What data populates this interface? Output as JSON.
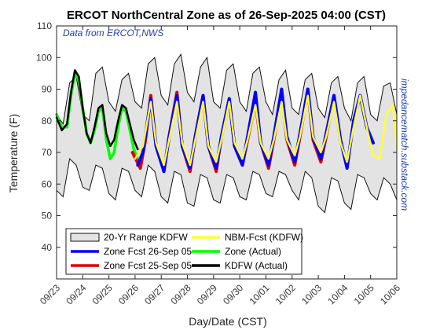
{
  "chart_data": {
    "type": "line",
    "title": "ERCOT NorthCentral Zone as of 26-Sep-2025 04:00 (CST)",
    "subtitle": "Data from ERCOT,NWS",
    "watermark": "impedancematch.substack.com",
    "xlabel": "Day/Date (CST)",
    "ylabel": "Temperature (F)",
    "ylim": [
      30,
      110
    ],
    "yticks": [
      40,
      50,
      60,
      70,
      80,
      90,
      100,
      110
    ],
    "xlim_days": [
      0,
      13
    ],
    "xtick_labels": [
      "09/23",
      "09/24",
      "09/25",
      "09/26",
      "09/27",
      "09/28",
      "09/29",
      "09/30",
      "10/01",
      "10/02",
      "10/03",
      "10/04",
      "10/05",
      "10/06"
    ],
    "grid": false,
    "legend_position": "lower-left",
    "legend": [
      {
        "label": "20-Yr Range KDFW",
        "color": "#d9d9d9",
        "kind": "patch"
      },
      {
        "label": "NBM-Fcst (KDFW)",
        "color": "#ffff33",
        "kind": "line"
      },
      {
        "label": "Zone Fcst 26-Sep 05",
        "color": "#0000ff",
        "kind": "line"
      },
      {
        "label": "Zone (Actual)",
        "color": "#00ff00",
        "kind": "line"
      },
      {
        "label": "Zone Fcst 25-Sep 05",
        "color": "#dd0000",
        "kind": "line"
      },
      {
        "label": "KDFW (Actual)",
        "color": "#000000",
        "kind": "line"
      }
    ],
    "range_band": {
      "name": "20-Yr Range KDFW",
      "days": [
        0,
        0.25,
        0.5,
        0.75,
        1,
        1.25,
        1.5,
        1.75,
        2,
        2.25,
        2.5,
        2.75,
        3,
        3.25,
        3.5,
        3.75,
        4,
        4.25,
        4.5,
        4.75,
        5,
        5.25,
        5.5,
        5.75,
        6,
        6.25,
        6.5,
        6.75,
        7,
        7.25,
        7.5,
        7.75,
        8,
        8.25,
        8.5,
        8.75,
        9,
        9.25,
        9.5,
        9.75,
        10,
        10.25,
        10.5,
        10.75,
        11,
        11.25,
        11.5,
        11.75,
        12,
        12.25,
        12.5,
        12.75,
        13
      ],
      "low": [
        58,
        56,
        68,
        66,
        59,
        58,
        66,
        65,
        57,
        55,
        65,
        64,
        58,
        56,
        66,
        64,
        56,
        54,
        64,
        63,
        54,
        53,
        63,
        62,
        55,
        54,
        63,
        62,
        56,
        55,
        64,
        63,
        57,
        56,
        64,
        63,
        58,
        55,
        64,
        62,
        53,
        51,
        62,
        61,
        54,
        52,
        63,
        62,
        57,
        55,
        62,
        60,
        55
      ],
      "high": [
        82,
        79,
        92,
        94,
        82,
        80,
        95,
        97,
        86,
        83,
        93,
        95,
        86,
        84,
        98,
        100,
        88,
        85,
        98,
        101,
        89,
        86,
        97,
        100,
        86,
        84,
        96,
        98,
        86,
        83,
        95,
        97,
        86,
        82,
        93,
        96,
        84,
        82,
        93,
        95,
        84,
        81,
        92,
        94,
        84,
        80,
        92,
        94,
        82,
        80,
        91,
        92,
        82
      ]
    },
    "series": [
      {
        "name": "KDFW (Actual)",
        "color": "#000000",
        "x": [
          0,
          0.2,
          0.4,
          0.55,
          0.7,
          0.85,
          1,
          1.15,
          1.3,
          1.45,
          1.6,
          1.75,
          1.9,
          2.05,
          2.2,
          2.35,
          2.5,
          2.65,
          2.8,
          2.95,
          3.1
        ],
        "y": [
          81,
          77,
          79,
          89,
          96,
          94,
          84,
          76,
          73,
          78,
          84,
          85,
          76,
          72,
          74,
          80,
          85,
          84,
          79,
          74,
          71
        ]
      },
      {
        "name": "Zone (Actual)",
        "color": "#00ff00",
        "x": [
          0,
          0.2,
          0.4,
          0.55,
          0.7,
          0.85,
          1,
          1.15,
          1.3,
          1.45,
          1.6,
          1.75,
          1.9,
          2.05,
          2.2,
          2.35,
          2.5,
          2.65,
          2.8,
          2.95,
          3.1,
          3.2
        ],
        "y": [
          82,
          78,
          78,
          88,
          95,
          93,
          84,
          76,
          73,
          77,
          83,
          84,
          74,
          68,
          70,
          78,
          84,
          83,
          77,
          71,
          68,
          66
        ]
      },
      {
        "name": "Zone Fcst 25-Sep 05",
        "color": "#dd0000",
        "x": [
          2.9,
          3.2,
          3.4,
          3.6,
          3.8,
          4.1,
          4.3,
          4.6,
          4.8,
          5.1,
          5.3,
          5.6,
          5.8,
          6.1,
          6.3,
          6.6,
          6.8,
          7.1,
          7.3,
          7.6,
          7.8,
          8.1,
          8.3,
          8.6,
          8.8,
          9.1,
          9.3,
          9.6,
          9.8,
          10.1,
          10.3,
          10.6
        ],
        "y": [
          70,
          65,
          74,
          88,
          72,
          64,
          75,
          89,
          72,
          64,
          75,
          88,
          72,
          64,
          75,
          87,
          72,
          66,
          74,
          86,
          73,
          65,
          74,
          89,
          74,
          66,
          75,
          90,
          74,
          67,
          75,
          88
        ]
      },
      {
        "name": "Zone Fcst 26-Sep 05",
        "color": "#0000ff",
        "x": [
          3.1,
          3.3,
          3.6,
          3.8,
          4.1,
          4.3,
          4.6,
          4.8,
          5.1,
          5.3,
          5.6,
          5.8,
          6.1,
          6.3,
          6.6,
          6.8,
          7.1,
          7.3,
          7.6,
          7.8,
          8.1,
          8.3,
          8.6,
          8.8,
          9.1,
          9.3,
          9.6,
          9.8,
          10.1,
          10.3,
          10.6,
          10.85,
          11.1,
          11.35,
          11.6,
          11.85,
          12.1
        ],
        "y": [
          66,
          70,
          87,
          72,
          64,
          75,
          88,
          72,
          65,
          75,
          88,
          72,
          65,
          75,
          87,
          72,
          66,
          75,
          89,
          73,
          66,
          75,
          90,
          75,
          67,
          76,
          90,
          75,
          68,
          76,
          88,
          74,
          65,
          80,
          88,
          78,
          73
        ]
      },
      {
        "name": "NBM-Fcst (KDFW)",
        "color": "#ffff33",
        "x": [
          3.0,
          3.3,
          3.6,
          3.8,
          4.1,
          4.3,
          4.6,
          4.8,
          5.1,
          5.3,
          5.6,
          5.8,
          6.1,
          6.3,
          6.6,
          6.8,
          7.1,
          7.3,
          7.6,
          7.8,
          8.1,
          8.3,
          8.6,
          8.8,
          9.1,
          9.3,
          9.6,
          9.8,
          10.1,
          10.3,
          10.6,
          10.85,
          11.1,
          11.35,
          11.6,
          11.85,
          12.1,
          12.35,
          12.6,
          12.85,
          13.0
        ],
        "y": [
          68,
          72,
          86,
          73,
          66,
          74,
          86,
          73,
          66,
          74,
          86,
          72,
          67,
          74,
          86,
          73,
          68,
          74,
          85,
          73,
          68,
          74,
          86,
          74,
          69,
          75,
          88,
          75,
          70,
          75,
          86,
          73,
          67,
          78,
          88,
          78,
          69,
          68,
          82,
          85,
          72
        ]
      }
    ]
  }
}
